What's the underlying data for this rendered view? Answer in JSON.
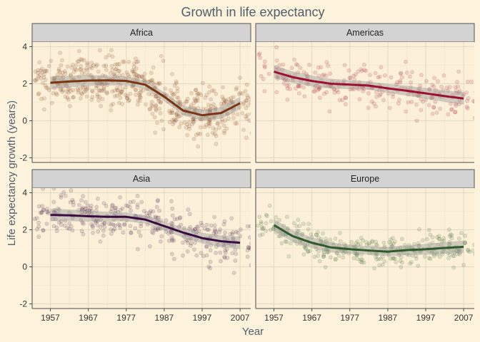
{
  "chart_data": {
    "type": "scatter",
    "title": "Growth in life expectancy",
    "xlabel": "Year",
    "ylabel": "Life expectancy growth (years)",
    "xlim": [
      1952.2,
      2009.8
    ],
    "ylim": [
      -2.25,
      4.25
    ],
    "x_ticks": [
      1957,
      1967,
      1977,
      1987,
      1997,
      2007
    ],
    "y_ticks": [
      -2,
      0,
      2,
      4
    ],
    "grid": true,
    "legend": "none",
    "colors": {
      "background": "#FDF3DC",
      "panel_background": "#FCF1D8",
      "grid_major": "#E5DCC6",
      "grid_minor": "#EFE7D0",
      "strip_fill": "#D3D3D3",
      "strip_border": "#555555",
      "text": "#4F5E6B",
      "band": "#9C9C9C"
    },
    "facets": [
      {
        "name": "Africa",
        "color": "#7A3512",
        "points_per_year": 52,
        "scatter_spread": 1.15,
        "trend_x": [
          1957,
          1962,
          1967,
          1972,
          1977,
          1982,
          1987,
          1992,
          1997,
          2002,
          2007
        ],
        "trend_y": [
          2.05,
          2.12,
          2.17,
          2.18,
          2.15,
          1.95,
          1.3,
          0.55,
          0.3,
          0.42,
          0.95
        ]
      },
      {
        "name": "Americas",
        "color": "#9C1030",
        "points_per_year": 25,
        "scatter_spread": 0.9,
        "trend_x": [
          1957,
          1962,
          1967,
          1972,
          1977,
          1982,
          1987,
          1992,
          1997,
          2002,
          2007
        ],
        "trend_y": [
          2.65,
          2.35,
          2.15,
          2.0,
          1.95,
          1.9,
          1.75,
          1.62,
          1.48,
          1.33,
          1.2
        ]
      },
      {
        "name": "Asia",
        "color": "#3A0D42",
        "points_per_year": 33,
        "scatter_spread": 0.95,
        "trend_x": [
          1957,
          1962,
          1967,
          1972,
          1977,
          1982,
          1987,
          1992,
          1997,
          2002,
          2007
        ],
        "trend_y": [
          2.8,
          2.78,
          2.73,
          2.7,
          2.7,
          2.55,
          2.2,
          1.85,
          1.55,
          1.38,
          1.3
        ]
      },
      {
        "name": "Europe",
        "color": "#2F5A2A",
        "points_per_year": 30,
        "scatter_spread": 0.6,
        "trend_x": [
          1957,
          1962,
          1967,
          1972,
          1977,
          1982,
          1987,
          1992,
          1997,
          2002,
          2007
        ],
        "trend_y": [
          2.25,
          1.65,
          1.3,
          1.05,
          0.95,
          0.88,
          0.82,
          0.9,
          0.95,
          1.02,
          1.08
        ]
      }
    ]
  }
}
